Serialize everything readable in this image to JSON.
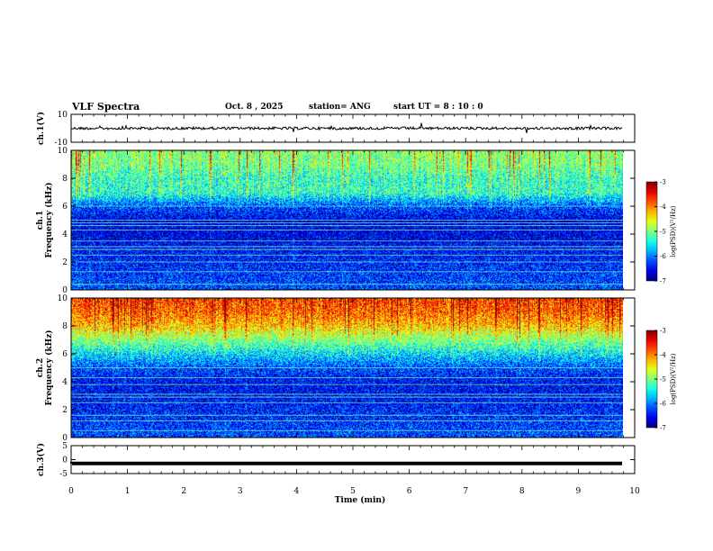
{
  "header": {
    "title": "VLF Spectra",
    "date": "Oct. 8 , 2025",
    "station": "station= ANG",
    "start": "start  UT =  8 : 10 : 0"
  },
  "chart_data": [
    {
      "type": "line",
      "panel": "waveform-ch1",
      "ylabel": "ch.1(V)",
      "ylim": [
        -10,
        10
      ],
      "yticks": [
        "10",
        "-10"
      ],
      "xlim": [
        0,
        10
      ],
      "baseline_value": 0,
      "trace_color": "#000000"
    },
    {
      "type": "heatmap",
      "panel": "spectrogram-ch1",
      "ylabel": "ch.1\nFrequency (kHz)",
      "ylim": [
        0,
        10
      ],
      "yticks": [
        "0",
        "2",
        "4",
        "6",
        "8",
        "10"
      ],
      "xlim": [
        0,
        9.8
      ],
      "colorbar": {
        "label": "log(PSD)(V²/Hz)",
        "ticks": [
          "-3",
          "-4",
          "-5",
          "-6",
          "-7"
        ],
        "range": [
          -7,
          -3
        ]
      },
      "profile_freq_khz": [
        0,
        1,
        2,
        3,
        4,
        5,
        6,
        7,
        8,
        9,
        10
      ],
      "profile_log_psd": [
        -6.2,
        -6.3,
        -6.4,
        -6.5,
        -6.6,
        -6.6,
        -6.2,
        -5.3,
        -5.3,
        -5.0,
        -4.9
      ],
      "horizontal_lines_khz": [
        0.4,
        1.3,
        2.0,
        2.5,
        2.9,
        3.1,
        3.5,
        4.3,
        4.6,
        4.8,
        5.0,
        6.0
      ]
    },
    {
      "type": "heatmap",
      "panel": "spectrogram-ch2",
      "ylabel": "ch.2\nFrequency (kHz)",
      "ylim": [
        0,
        10
      ],
      "yticks": [
        "0",
        "2",
        "4",
        "6",
        "8",
        "10"
      ],
      "xlim": [
        0,
        9.8
      ],
      "colorbar": {
        "label": "log(PSD)(V²/Hz)",
        "ticks": [
          "-3",
          "-4",
          "-5",
          "-6",
          "-7"
        ],
        "range": [
          -7,
          -3
        ]
      },
      "profile_freq_khz": [
        0,
        1,
        2,
        3,
        4,
        5,
        6,
        7,
        8,
        9,
        10
      ],
      "profile_log_psd": [
        -6.2,
        -6.3,
        -6.4,
        -6.5,
        -6.5,
        -6.2,
        -5.6,
        -5.0,
        -4.3,
        -3.9,
        -3.7
      ],
      "horizontal_lines_khz": [
        0.5,
        1.2,
        1.6,
        2.5,
        2.9,
        3.1,
        3.8,
        4.3,
        5.0
      ]
    },
    {
      "type": "line",
      "panel": "waveform-ch3",
      "ylabel": "ch.3(V)",
      "ylim": [
        -5,
        5
      ],
      "yticks": [
        "5",
        "0",
        "-5"
      ],
      "xlim": [
        0,
        10
      ],
      "baseline_value": -1.4,
      "trace_color": "#000000"
    }
  ],
  "x_axis": {
    "label": "Time  (min)",
    "ticks": [
      "0",
      "1",
      "2",
      "3",
      "4",
      "5",
      "6",
      "7",
      "8",
      "9",
      "10"
    ]
  }
}
